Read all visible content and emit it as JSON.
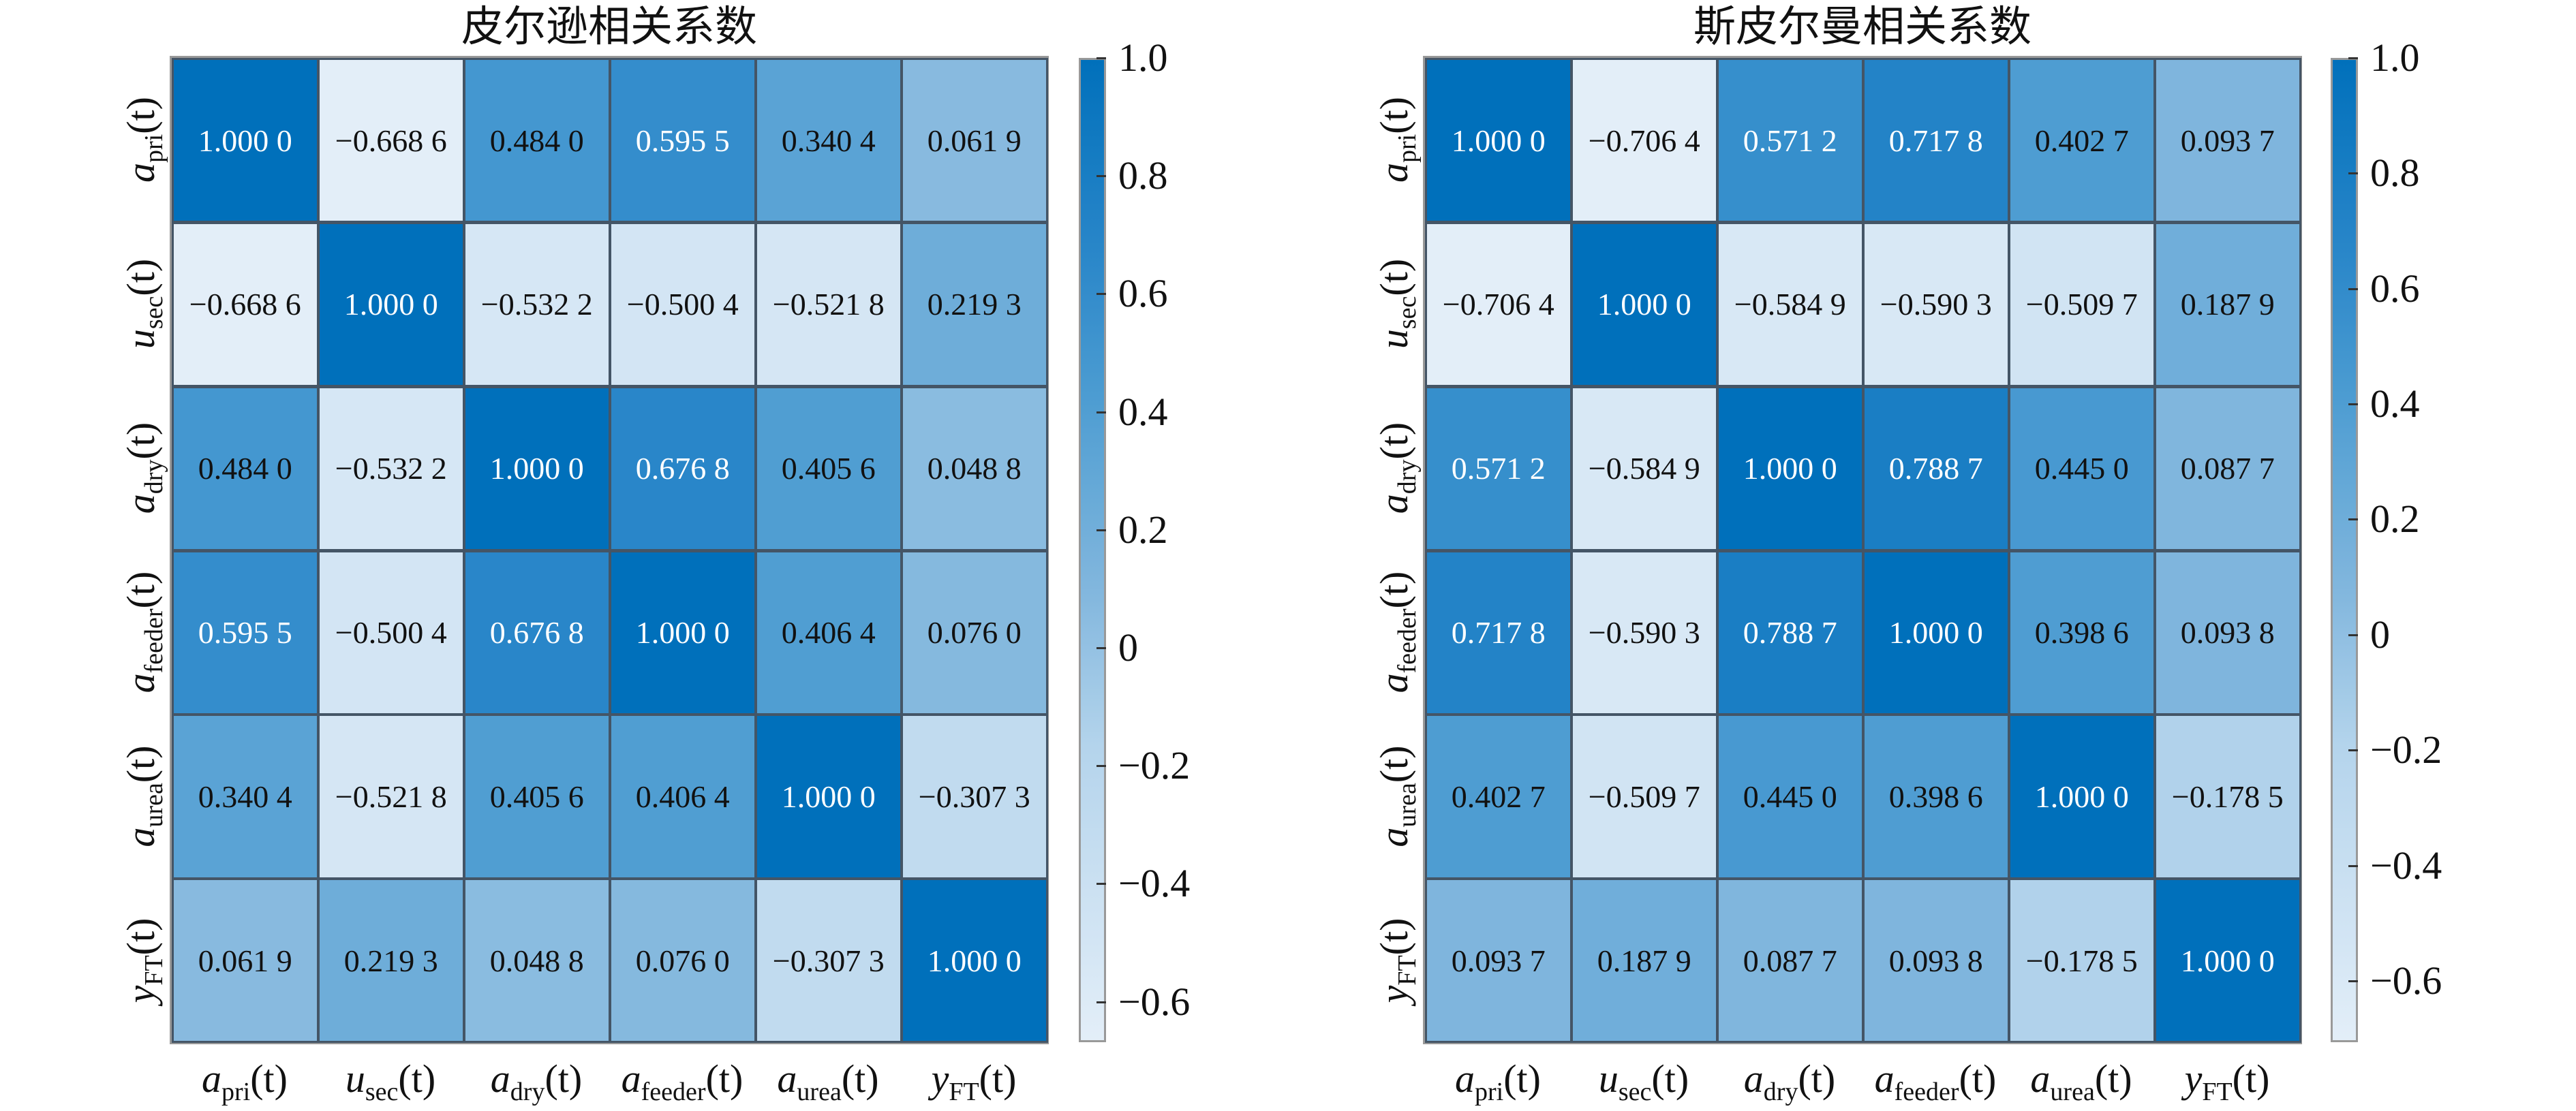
{
  "chart_data": [
    {
      "type": "heatmap",
      "title": "皮尔逊相关系数",
      "row_labels": [
        {
          "base": "a",
          "sub": "pri",
          "arg": "(t)"
        },
        {
          "base": "u",
          "sub": "sec",
          "arg": "(t)"
        },
        {
          "base": "a",
          "sub": "dry",
          "arg": "(t)"
        },
        {
          "base": "a",
          "sub": "feeder",
          "arg": "(t)"
        },
        {
          "base": "a",
          "sub": "urea",
          "arg": "(t)"
        },
        {
          "base": "y",
          "sub": "FT",
          "arg": "(t)"
        }
      ],
      "col_labels": [
        {
          "base": "a",
          "sub": "pri",
          "arg": "(t)"
        },
        {
          "base": "u",
          "sub": "sec",
          "arg": "(t)"
        },
        {
          "base": "a",
          "sub": "dry",
          "arg": "(t)"
        },
        {
          "base": "a",
          "sub": "feeder",
          "arg": "(t)"
        },
        {
          "base": "a",
          "sub": "urea",
          "arg": "(t)"
        },
        {
          "base": "y",
          "sub": "FT",
          "arg": "(t)"
        }
      ],
      "values": [
        [
          1.0,
          -0.6686,
          0.484,
          0.5955,
          0.3404,
          0.0619
        ],
        [
          -0.6686,
          1.0,
          -0.5322,
          -0.5004,
          -0.5218,
          0.2193
        ],
        [
          0.484,
          -0.5322,
          1.0,
          0.6768,
          0.4056,
          0.0488
        ],
        [
          0.5955,
          -0.5004,
          0.6768,
          1.0,
          0.4064,
          0.076
        ],
        [
          0.3404,
          -0.5218,
          0.4056,
          0.4064,
          1.0,
          -0.3073
        ],
        [
          0.0619,
          0.2193,
          0.0488,
          0.076,
          -0.3073,
          1.0
        ]
      ],
      "cell_labels": [
        [
          "1.000 0",
          "−0.668 6",
          "0.484 0",
          "0.595 5",
          "0.340 4",
          "0.061 9"
        ],
        [
          "−0.668 6",
          "1.000 0",
          "−0.532 2",
          "−0.500 4",
          "−0.521 8",
          "0.219 3"
        ],
        [
          "0.484 0",
          "−0.532 2",
          "1.000 0",
          "0.676 8",
          "0.405 6",
          "0.048 8"
        ],
        [
          "0.595 5",
          "−0.500 4",
          "0.676 8",
          "1.000 0",
          "0.406 4",
          "0.076 0"
        ],
        [
          "0.340 4",
          "−0.521 8",
          "0.405 6",
          "0.406 4",
          "1.000 0",
          "−0.307 3"
        ],
        [
          "0.061 9",
          "0.219 3",
          "0.048 8",
          "0.076 0",
          "−0.307 3",
          "1.000 0"
        ]
      ],
      "colorbar": {
        "range": [
          -0.6686,
          1.0
        ],
        "ticks": [
          {
            "v": 1.0,
            "label": "1.0"
          },
          {
            "v": 0.8,
            "label": "0.8"
          },
          {
            "v": 0.6,
            "label": "0.6"
          },
          {
            "v": 0.4,
            "label": "0.4"
          },
          {
            "v": 0.2,
            "label": "0.2"
          },
          {
            "v": 0,
            "label": "0"
          },
          {
            "v": -0.2,
            "label": "−0.2"
          },
          {
            "v": -0.4,
            "label": "−0.4"
          },
          {
            "v": -0.6,
            "label": "−0.6"
          }
        ]
      }
    },
    {
      "type": "heatmap",
      "title": "斯皮尔曼相关系数",
      "row_labels": [
        {
          "base": "a",
          "sub": "pri",
          "arg": "(t)"
        },
        {
          "base": "u",
          "sub": "sec",
          "arg": "(t)"
        },
        {
          "base": "a",
          "sub": "dry",
          "arg": "(t)"
        },
        {
          "base": "a",
          "sub": "feeder",
          "arg": "(t)"
        },
        {
          "base": "a",
          "sub": "urea",
          "arg": "(t)"
        },
        {
          "base": "y",
          "sub": "FT",
          "arg": "(t)"
        }
      ],
      "col_labels": [
        {
          "base": "a",
          "sub": "pri",
          "arg": "(t)"
        },
        {
          "base": "u",
          "sub": "sec",
          "arg": "(t)"
        },
        {
          "base": "a",
          "sub": "dry",
          "arg": "(t)"
        },
        {
          "base": "a",
          "sub": "feeder",
          "arg": "(t)"
        },
        {
          "base": "a",
          "sub": "urea",
          "arg": "(t)"
        },
        {
          "base": "y",
          "sub": "FT",
          "arg": "(t)"
        }
      ],
      "values": [
        [
          1.0,
          -0.7064,
          0.5712,
          0.7178,
          0.4027,
          0.0937
        ],
        [
          -0.7064,
          1.0,
          -0.5849,
          -0.5903,
          -0.5097,
          0.1879
        ],
        [
          0.5712,
          -0.5849,
          1.0,
          0.7887,
          0.445,
          0.0877
        ],
        [
          0.7178,
          -0.5903,
          0.7887,
          1.0,
          0.3986,
          0.0938
        ],
        [
          0.4027,
          -0.5097,
          0.445,
          0.3986,
          1.0,
          -0.1785
        ],
        [
          0.0937,
          0.1879,
          0.0877,
          0.0938,
          -0.1785,
          1.0
        ]
      ],
      "cell_labels": [
        [
          "1.000 0",
          "−0.706 4",
          "0.571 2",
          "0.717 8",
          "0.402 7",
          "0.093 7"
        ],
        [
          "−0.706 4",
          "1.000 0",
          "−0.584 9",
          "−0.590 3",
          "−0.509 7",
          "0.187 9"
        ],
        [
          "0.571 2",
          "−0.584 9",
          "1.000 0",
          "0.788 7",
          "0.445 0",
          "0.087 7"
        ],
        [
          "0.717 8",
          "−0.590 3",
          "0.788 7",
          "1.000 0",
          "0.398 6",
          "0.093 8"
        ],
        [
          "0.402 7",
          "−0.509 7",
          "0.445 0",
          "0.398 6",
          "1.000 0",
          "−0.178 5"
        ],
        [
          "0.093 7",
          "0.187 9",
          "0.087 7",
          "0.093 8",
          "−0.178 5",
          "1.000 0"
        ]
      ],
      "colorbar": {
        "range": [
          -0.7064,
          1.0
        ],
        "ticks": [
          {
            "v": 1.0,
            "label": "1.0"
          },
          {
            "v": 0.8,
            "label": "0.8"
          },
          {
            "v": 0.6,
            "label": "0.6"
          },
          {
            "v": 0.4,
            "label": "0.4"
          },
          {
            "v": 0.2,
            "label": "0.2"
          },
          {
            "v": 0,
            "label": "0"
          },
          {
            "v": -0.2,
            "label": "−0.2"
          },
          {
            "v": -0.4,
            "label": "−0.4"
          },
          {
            "v": -0.6,
            "label": "−0.6"
          }
        ]
      }
    }
  ],
  "colormap": {
    "low": "#e3eef8",
    "high": "#0070bb"
  }
}
